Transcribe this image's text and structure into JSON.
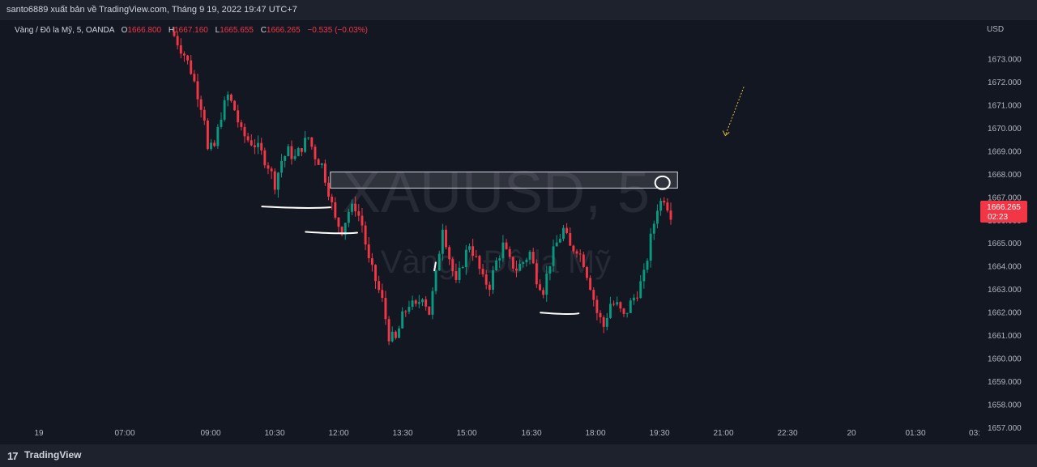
{
  "header": {
    "published_by": "santo6889 xuất bản về TradingView.com, Tháng 9 19, 2022 19:47 UTC+7"
  },
  "symbol": {
    "name": "Vàng / Đô la Mỹ, 5, OANDA",
    "open_label": "O",
    "open": "1666.800",
    "high_label": "H",
    "high": "1667.160",
    "low_label": "L",
    "low": "1665.655",
    "close_label": "C",
    "close": "1666.265",
    "change": "−0.535 (−0.03%)"
  },
  "watermark": {
    "ticker": "XAUUSD, 5",
    "description": "Vàng / Đô la Mỹ"
  },
  "price_scale": {
    "currency": "USD",
    "current_price": "1666.265",
    "countdown": "02:23"
  },
  "footer": {
    "brand": "TradingView",
    "logo": "17"
  },
  "colors": {
    "up": "#089981",
    "down": "#f23645",
    "background": "#131722",
    "text": "#b2b5be"
  },
  "chart_data": {
    "type": "candlestick",
    "y_ticks": [
      "1657.000",
      "1658.000",
      "1659.000",
      "1660.000",
      "1661.000",
      "1662.000",
      "1663.000",
      "1664.000",
      "1665.000",
      "1666.000",
      "1667.000",
      "1668.000",
      "1669.000",
      "1670.000",
      "1671.000",
      "1672.000",
      "1673.000"
    ],
    "ylim": [
      1656.6,
      1674.4
    ],
    "x_ticks": [
      "19",
      "07:00",
      "09:00",
      "10:30",
      "12:00",
      "13:30",
      "15:00",
      "16:30",
      "18:00",
      "19:30",
      "21:00",
      "22:30",
      "20",
      "01:30",
      "03:"
    ],
    "close_path": [
      [
        0,
        1674.0
      ],
      [
        3,
        1673.2
      ],
      [
        5,
        1672.5
      ],
      [
        7,
        1671.5
      ],
      [
        9,
        1670.5
      ],
      [
        10,
        1669.0
      ],
      [
        12,
        1669.2
      ],
      [
        14,
        1670.6
      ],
      [
        16,
        1671.4
      ],
      [
        18,
        1670.8
      ],
      [
        20,
        1669.8
      ],
      [
        22,
        1669.5
      ],
      [
        24,
        1669.3
      ],
      [
        26,
        1668.9
      ],
      [
        28,
        1668.4
      ],
      [
        30,
        1667.6
      ],
      [
        32,
        1668.6
      ],
      [
        34,
        1669.0
      ],
      [
        36,
        1668.7
      ],
      [
        38,
        1669.2
      ],
      [
        40,
        1669.6
      ],
      [
        42,
        1668.8
      ],
      [
        44,
        1668.4
      ],
      [
        46,
        1667.3
      ],
      [
        48,
        1666.0
      ],
      [
        50,
        1665.6
      ],
      [
        52,
        1666.4
      ],
      [
        54,
        1666.6
      ],
      [
        56,
        1665.8
      ],
      [
        58,
        1664.2
      ],
      [
        60,
        1663.4
      ],
      [
        62,
        1662.5
      ],
      [
        64,
        1661.0
      ],
      [
        66,
        1660.8
      ],
      [
        68,
        1661.8
      ],
      [
        70,
        1662.4
      ],
      [
        72,
        1662.2
      ],
      [
        74,
        1662.8
      ],
      [
        76,
        1662.0
      ],
      [
        78,
        1663.6
      ],
      [
        80,
        1665.8
      ],
      [
        82,
        1664.4
      ],
      [
        84,
        1663.2
      ],
      [
        86,
        1664.2
      ],
      [
        88,
        1665.0
      ],
      [
        90,
        1664.3
      ],
      [
        92,
        1663.4
      ],
      [
        94,
        1663.2
      ],
      [
        96,
        1664.2
      ],
      [
        98,
        1664.9
      ],
      [
        100,
        1664.2
      ],
      [
        102,
        1663.9
      ],
      [
        104,
        1664.2
      ],
      [
        106,
        1664.6
      ],
      [
        108,
        1663.5
      ],
      [
        110,
        1663.0
      ],
      [
        112,
        1664.2
      ],
      [
        114,
        1665.0
      ],
      [
        116,
        1665.6
      ],
      [
        118,
        1664.8
      ],
      [
        120,
        1664.8
      ],
      [
        122,
        1664.2
      ],
      [
        124,
        1663.2
      ],
      [
        126,
        1662.0
      ],
      [
        128,
        1661.4
      ],
      [
        130,
        1662.4
      ],
      [
        132,
        1662.3
      ],
      [
        134,
        1661.8
      ],
      [
        136,
        1662.4
      ],
      [
        138,
        1662.9
      ],
      [
        140,
        1663.6
      ],
      [
        142,
        1665.2
      ],
      [
        144,
        1666.6
      ],
      [
        146,
        1667.0
      ],
      [
        148,
        1666.3
      ]
    ],
    "annotations": {
      "resistance_zone": {
        "from_price": 1667.4,
        "to_price": 1668.1,
        "from_bar": 48,
        "to_bar": 150
      },
      "support_lines": [
        {
          "price": 1666.6,
          "from_bar": 31,
          "to_bar": 48
        },
        {
          "price": 1665.5,
          "from_bar": 44,
          "to_bar": 56
        },
        {
          "price": 1662.0,
          "from_bar": 114,
          "to_bar": 122
        }
      ],
      "circle": {
        "price": 1667.7,
        "bar": 146
      },
      "arrow": {
        "from_price": 1672.0,
        "from_bar": 163,
        "to_price": 1669.4,
        "to_bar": 157
      }
    }
  }
}
